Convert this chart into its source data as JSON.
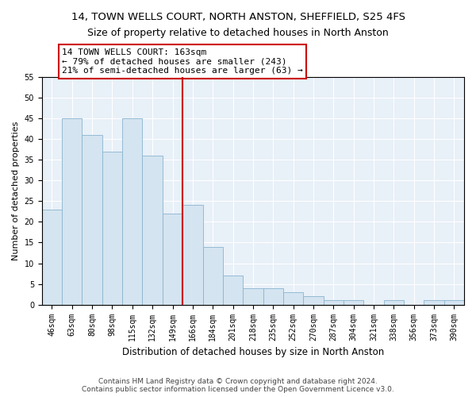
{
  "title": "14, TOWN WELLS COURT, NORTH ANSTON, SHEFFIELD, S25 4FS",
  "subtitle": "Size of property relative to detached houses in North Anston",
  "xlabel": "Distribution of detached houses by size in North Anston",
  "ylabel": "Number of detached properties",
  "categories": [
    "46sqm",
    "63sqm",
    "80sqm",
    "98sqm",
    "115sqm",
    "132sqm",
    "149sqm",
    "166sqm",
    "184sqm",
    "201sqm",
    "218sqm",
    "235sqm",
    "252sqm",
    "270sqm",
    "287sqm",
    "304sqm",
    "321sqm",
    "338sqm",
    "356sqm",
    "373sqm",
    "390sqm"
  ],
  "values": [
    23,
    45,
    41,
    37,
    45,
    36,
    22,
    24,
    14,
    7,
    4,
    4,
    3,
    2,
    1,
    1,
    0,
    1,
    0,
    1,
    1
  ],
  "bar_color": "#d4e4f0",
  "bar_edge_color": "#8ab4d0",
  "vline_index": 7,
  "vline_color": "#cc0000",
  "annotation_title": "14 TOWN WELLS COURT: 163sqm",
  "annotation_line2": "← 79% of detached houses are smaller (243)",
  "annotation_line3": "21% of semi-detached houses are larger (63) →",
  "annotation_box_color": "#ffffff",
  "annotation_box_edge": "#cc0000",
  "ylim": [
    0,
    55
  ],
  "yticks": [
    0,
    5,
    10,
    15,
    20,
    25,
    30,
    35,
    40,
    45,
    50,
    55
  ],
  "footer1": "Contains HM Land Registry data © Crown copyright and database right 2024.",
  "footer2": "Contains public sector information licensed under the Open Government Licence v3.0.",
  "plot_bg_color": "#e8f0f8",
  "grid_color": "#ffffff",
  "title_fontsize": 9.5,
  "xlabel_fontsize": 8.5,
  "ylabel_fontsize": 8,
  "tick_fontsize": 7,
  "annotation_fontsize": 8,
  "footer_fontsize": 6.5
}
